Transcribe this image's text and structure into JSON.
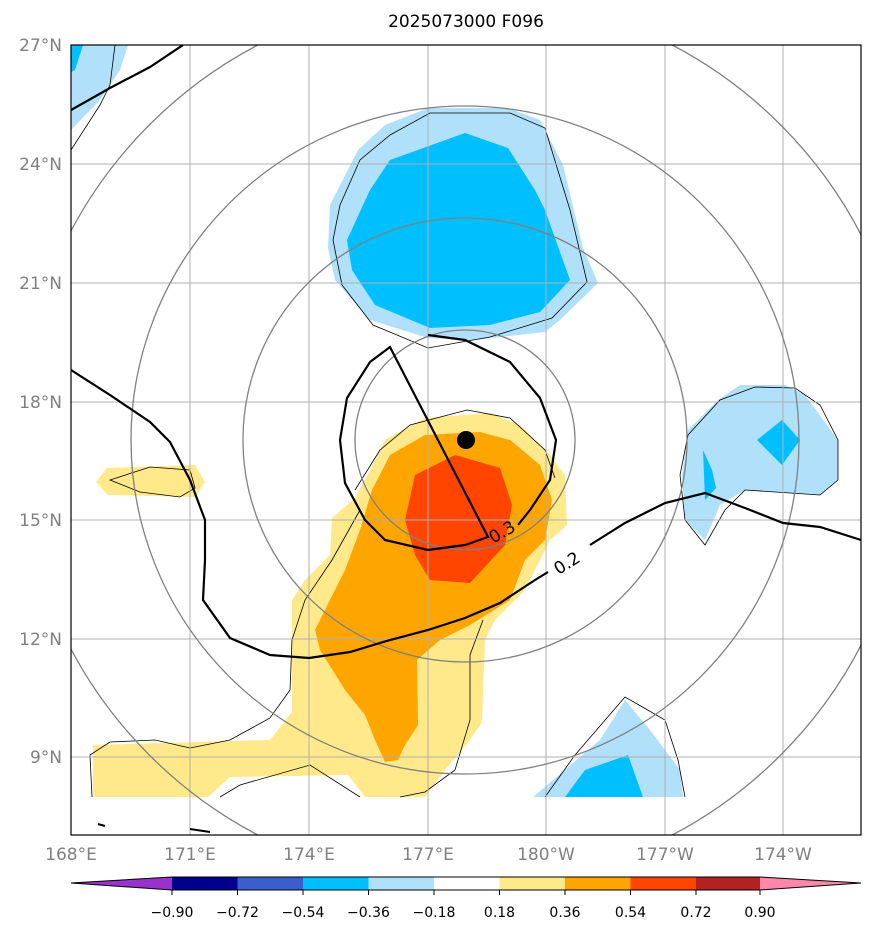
{
  "title": "2025073000 F096",
  "map": {
    "lat_labels": [
      "27°N",
      "24°N",
      "21°N",
      "18°N",
      "15°N",
      "12°N",
      "9°N"
    ],
    "lon_labels": [
      "168°E",
      "171°E",
      "174°E",
      "177°E",
      "180°W",
      "177°W",
      "174°W"
    ],
    "lat_range": [
      7,
      27
    ],
    "lon_range": [
      168,
      188
    ],
    "grid": true,
    "contour_labels": [
      "0.3",
      "0.2"
    ],
    "storm_center": {
      "lat": 17.0,
      "lon": 178.0
    }
  },
  "colorbar": {
    "ticks": [
      "−0.90",
      "−0.72",
      "−0.54",
      "−0.36",
      "−0.18",
      "0.18",
      "0.36",
      "0.54",
      "0.72",
      "0.90"
    ],
    "colors": [
      "#9932cc",
      "#00008b",
      "#3a5fcd",
      "#00bfff",
      "#b0e0fa",
      "#ffffff",
      "#ffe98a",
      "#ffa500",
      "#ff4500",
      "#b22222",
      "#ff88aa"
    ],
    "extend": "both"
  },
  "colors": {
    "light_blue": "#b0e0fa",
    "blue": "#00bfff",
    "light_yellow": "#ffe98a",
    "orange": "#ffa500",
    "red_orange": "#ff4500",
    "grid": "#b0b0b0",
    "range_rings": "#808080"
  }
}
